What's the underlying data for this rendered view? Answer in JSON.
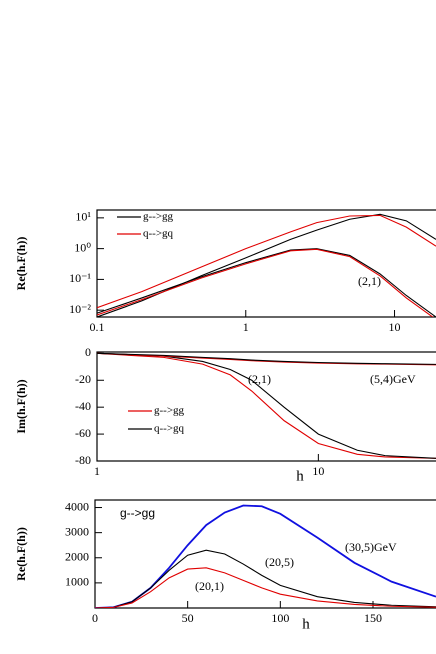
{
  "chart_data": [
    {
      "type": "line",
      "xlog": true,
      "ylog": true,
      "ylabel": "Re(h.F(h))",
      "xlim": [
        0.1,
        19
      ],
      "ylim": [
        0.006,
        18
      ],
      "xticks": [
        0.1,
        1,
        10
      ],
      "yticks": [
        {
          "value": 10,
          "label": "10¹"
        },
        {
          "value": 1,
          "label": "10⁰"
        },
        {
          "value": 0.1,
          "label": "10⁻¹"
        },
        {
          "value": 0.01,
          "label": "10⁻²"
        }
      ],
      "annotations": [
        "(2,1)"
      ],
      "x": [
        0.1,
        0.2,
        0.5,
        1,
        2,
        3,
        5,
        8,
        12,
        19
      ],
      "series": [
        {
          "name": "g-->gg",
          "color": "#000000",
          "values": [
            0.006,
            0.02,
            0.13,
            0.5,
            2,
            4,
            9,
            13,
            8,
            2
          ]
        },
        {
          "name": "q-->gq",
          "color": "#e00000",
          "values": [
            0.012,
            0.04,
            0.25,
            1,
            3.5,
            7,
            11.5,
            12,
            5,
            1.2
          ]
        },
        {
          "color": "#000000",
          "values": [
            0.008,
            0.025,
            0.12,
            0.35,
            0.9,
            1,
            0.6,
            0.15,
            0.03,
            0.006
          ]
        },
        {
          "color": "#e00000",
          "values": [
            0.007,
            0.022,
            0.11,
            0.32,
            0.85,
            0.95,
            0.55,
            0.13,
            0.025,
            0.005
          ]
        }
      ]
    },
    {
      "type": "line",
      "xlog": true,
      "ylog": false,
      "ylabel": "Im(h.F(h))",
      "xlabel": "h",
      "xlim": [
        1,
        34
      ],
      "ylim": [
        -80,
        1
      ],
      "xticks": [
        1,
        10
      ],
      "yticks": [
        0,
        -20,
        -40,
        -60,
        -80
      ],
      "annotations": [
        "(2,1)",
        "(5,4)GeV"
      ],
      "x": [
        1,
        2,
        3,
        4,
        5,
        7,
        10,
        15,
        20,
        34
      ],
      "series": [
        {
          "name": "g-->gg",
          "color": "#e00000",
          "values": [
            0,
            -3,
            -8,
            -16,
            -28,
            -50,
            -67,
            -75,
            -77,
            -78
          ]
        },
        {
          "name": "q-->gq",
          "color": "#000000",
          "values": [
            0,
            -2,
            -6,
            -12,
            -20,
            -40,
            -60,
            -72,
            -76,
            -78
          ]
        },
        {
          "color": "#e00000",
          "values": [
            0,
            -2,
            -3.5,
            -4.5,
            -5.5,
            -6.5,
            -7.2,
            -7.8,
            -8,
            -8.5
          ]
        },
        {
          "color": "#000000",
          "values": [
            0,
            -1.5,
            -3,
            -4,
            -5,
            -6,
            -6.8,
            -7.4,
            -7.7,
            -8.2
          ]
        }
      ]
    },
    {
      "type": "line",
      "xlog": false,
      "ylog": false,
      "title": "g-->gg",
      "ylabel": "Re(h.F(h))",
      "xlabel": "h",
      "xlim": [
        0,
        184
      ],
      "ylim": [
        0,
        4300
      ],
      "xticks": [
        0,
        50,
        100,
        150
      ],
      "yticks": [
        1000,
        2000,
        3000,
        4000
      ],
      "annotations": [
        "(30,5)GeV",
        "(20,5)",
        "(20,1)"
      ],
      "x": [
        0,
        10,
        20,
        30,
        40,
        50,
        60,
        70,
        80,
        90,
        100,
        120,
        140,
        160,
        184
      ],
      "series": [
        {
          "color": "#1010e0",
          "values": [
            0,
            30,
            250,
            800,
            1600,
            2500,
            3300,
            3800,
            4080,
            4050,
            3750,
            2800,
            1800,
            1050,
            450
          ]
        },
        {
          "color": "#000000",
          "values": [
            0,
            30,
            250,
            800,
            1500,
            2100,
            2300,
            2150,
            1750,
            1300,
            900,
            450,
            220,
            110,
            50
          ]
        },
        {
          "color": "#e00000",
          "values": [
            0,
            25,
            200,
            650,
            1200,
            1550,
            1600,
            1400,
            1100,
            800,
            550,
            280,
            140,
            70,
            30
          ]
        }
      ]
    }
  ]
}
